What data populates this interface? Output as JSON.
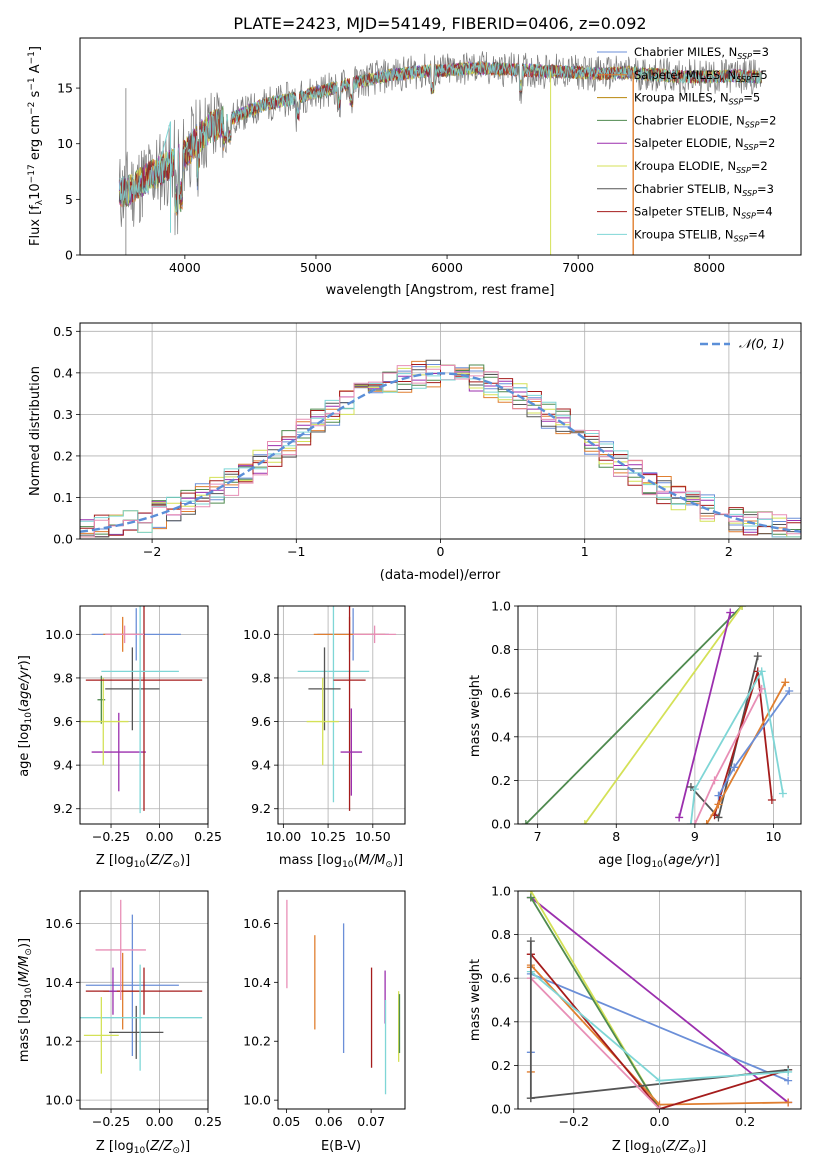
{
  "title": "PLATE=2423, MJD=54149, FIBERID=0406, z=0.092",
  "colors": {
    "Chabrier MILES": "#6b8fd8",
    "Salpeter MILES": "#e07f30",
    "Kroupa MILES": "#b8860b",
    "Chabrier ELODIE": "#4f8a4f",
    "Salpeter ELODIE": "#9b2fae",
    "Kroupa ELODIE": "#d4e157",
    "Chabrier STELIB": "#555555",
    "Salpeter STELIB": "#a51c1c",
    "Kroupa STELIB": "#7fd6d6",
    "pink": "#e88fb6",
    "gaussian": "#5b8fd8"
  },
  "chart_data": [
    {
      "type": "line",
      "panel": "spectrum",
      "xlabel": "wavelength [Angstrom, rest frame]",
      "ylabel": "Flux [f_λ10^{-17} erg cm^{-2} s^{-1} A^{-1}]",
      "xlim": [
        3200,
        8700
      ],
      "ylim": [
        0,
        19.5
      ],
      "xticks": [
        4000,
        5000,
        6000,
        7000,
        8000
      ],
      "yticks": [
        0,
        5,
        10,
        15
      ],
      "legend_position": "upper-right",
      "continuum": {
        "x": [
          3500,
          3600,
          3700,
          3800,
          3900,
          4000,
          4100,
          4200,
          4400,
          4600,
          4800,
          5000,
          5200,
          5400,
          5600,
          5800,
          6000,
          6200,
          6400,
          6600,
          6800,
          7000,
          7200,
          7400,
          7600,
          7800,
          8000,
          8200,
          8400
        ],
        "y": [
          5.5,
          6.0,
          6.8,
          7.5,
          8.2,
          9.0,
          10.5,
          11.5,
          12.5,
          13.5,
          14.0,
          14.6,
          15.2,
          15.8,
          16.2,
          16.5,
          16.6,
          16.8,
          16.7,
          16.6,
          16.5,
          16.4,
          16.3,
          16.4,
          16.2,
          16.0,
          16.0,
          16.1,
          16.0
        ]
      },
      "series": [
        {
          "name": "Chabrier MILES",
          "nssp": "3"
        },
        {
          "name": "Salpeter MILES",
          "nssp": "5"
        },
        {
          "name": "Kroupa MILES",
          "nssp": "5"
        },
        {
          "name": "Chabrier ELODIE",
          "nssp": "2"
        },
        {
          "name": "Salpeter ELODIE",
          "nssp": "2"
        },
        {
          "name": "Kroupa ELODIE",
          "nssp": "2"
        },
        {
          "name": "Chabrier STELIB",
          "nssp": "3"
        },
        {
          "name": "Salpeter STELIB",
          "nssp": "4"
        },
        {
          "name": "Kroupa STELIB",
          "nssp": "4"
        }
      ]
    },
    {
      "type": "histogram",
      "panel": "residuals",
      "xlabel": "(data-model)/error",
      "ylabel": "Normed distribution",
      "xlim": [
        -2.5,
        2.5
      ],
      "ylim": [
        0,
        0.52
      ],
      "xticks": [
        -2,
        -1,
        0,
        1,
        2
      ],
      "yticks": [
        0.0,
        0.1,
        0.2,
        0.3,
        0.4,
        0.5
      ],
      "grid": true,
      "legend": "𝒩(0, 1)",
      "legend_position": "upper-right",
      "gaussian": {
        "mean": 0,
        "sigma": 1
      }
    },
    {
      "type": "scatter",
      "panel": "age-vs-Z",
      "xlabel": "Z [log₁₀(Z/Z⊙)]",
      "ylabel": "age  [log₁₀(age/yr)]",
      "xlim": [
        -0.41,
        0.25
      ],
      "ylim": [
        9.13,
        10.13
      ],
      "xticks": [
        -0.25,
        0.0,
        0.25
      ],
      "yticks": [
        9.2,
        9.4,
        9.6,
        9.8,
        10.0
      ],
      "grid": true,
      "points": [
        {
          "color": "Chabrier MILES",
          "x": -0.12,
          "xerr": 0.23,
          "y": 10.0,
          "yerr": 0.12
        },
        {
          "color": "Salpeter MILES",
          "x": -0.19,
          "xerr": 0.1,
          "y": 10.0,
          "yerr": 0.08
        },
        {
          "color": "Chabrier ELODIE",
          "x": -0.3,
          "xerr": 0.02,
          "y": 9.7,
          "yerr": 0.11
        },
        {
          "color": "Salpeter ELODIE",
          "x": -0.21,
          "xerr": 0.14,
          "y": 9.46,
          "yerr": 0.18
        },
        {
          "color": "Kroupa ELODIE",
          "x": -0.29,
          "xerr": 0.13,
          "y": 9.6,
          "yerr": 0.2
        },
        {
          "color": "Chabrier STELIB",
          "x": -0.14,
          "xerr": 0.14,
          "y": 9.75,
          "yerr": 0.19
        },
        {
          "color": "Salpeter STELIB",
          "x": -0.08,
          "xerr": 0.3,
          "y": 9.79,
          "yerr": 0.6
        },
        {
          "color": "Kroupa STELIB",
          "x": -0.1,
          "xerr": 0.2,
          "y": 9.83,
          "yerr": 0.65
        },
        {
          "color": "pink",
          "x": -0.18,
          "xerr": 0.1,
          "y": 10.0,
          "yerr": 0.04
        }
      ]
    },
    {
      "type": "scatter",
      "panel": "age-vs-mass",
      "xlabel": "mass [log₁₀(M/M⊙)]",
      "xlim": [
        9.97,
        10.68
      ],
      "ylim": [
        9.13,
        10.13
      ],
      "xticks": [
        10.0,
        10.25,
        10.5
      ],
      "yticks": [
        9.2,
        9.4,
        9.6,
        9.8,
        10.0
      ],
      "grid": true,
      "points": [
        {
          "color": "Chabrier MILES",
          "x": 10.39,
          "xerr": 0.2,
          "y": 10.0,
          "yerr": 0.12
        },
        {
          "color": "Salpeter MILES",
          "x": 10.37,
          "xerr": 0.2,
          "y": 10.0,
          "yerr": 0.08
        },
        {
          "color": "Kroupa STELIB",
          "x": 10.28,
          "xerr": 0.2,
          "y": 9.83,
          "yerr": 0.6
        },
        {
          "color": "Chabrier STELIB",
          "x": 10.23,
          "xerr": 0.09,
          "y": 9.75,
          "yerr": 0.19
        },
        {
          "color": "Salpeter STELIB",
          "x": 10.37,
          "xerr": 0.09,
          "y": 9.79,
          "yerr": 0.6
        },
        {
          "color": "Kroupa ELODIE",
          "x": 10.22,
          "xerr": 0.09,
          "y": 9.6,
          "yerr": 0.2
        },
        {
          "color": "Salpeter ELODIE",
          "x": 10.38,
          "xerr": 0.06,
          "y": 9.46,
          "yerr": 0.2
        },
        {
          "color": "pink",
          "x": 10.51,
          "xerr": 0.12,
          "y": 10.0,
          "yerr": 0.04
        }
      ]
    },
    {
      "type": "line",
      "panel": "mass-weight-vs-age",
      "xlabel": "age  [log₁₀(age/yr)]",
      "ylabel": "mass weight",
      "xlim": [
        6.75,
        10.35
      ],
      "ylim": [
        0,
        1.0
      ],
      "xticks": [
        7,
        8,
        9,
        10
      ],
      "yticks": [
        0.0,
        0.2,
        0.4,
        0.6,
        0.8,
        1.0
      ],
      "grid": true,
      "series": [
        {
          "color": "Chabrier ELODIE",
          "x": [
            6.85,
            9.6
          ],
          "y": [
            0.0,
            1.0
          ]
        },
        {
          "color": "Kroupa ELODIE",
          "x": [
            7.6,
            9.6
          ],
          "y": [
            0.0,
            1.0
          ]
        },
        {
          "color": "Salpeter ELODIE",
          "x": [
            8.8,
            9.45
          ],
          "y": [
            0.03,
            0.97
          ]
        },
        {
          "color": "Chabrier STELIB",
          "x": [
            8.95,
            9.3,
            9.8
          ],
          "y": [
            0.17,
            0.03,
            0.77
          ]
        },
        {
          "color": "Salpeter STELIB",
          "x": [
            9.25,
            9.8,
            9.98
          ],
          "y": [
            0.04,
            0.7,
            0.11
          ]
        },
        {
          "color": "Salpeter MILES",
          "x": [
            9.15,
            9.3,
            10.15
          ],
          "y": [
            0.0,
            0.09,
            0.65
          ]
        },
        {
          "color": "Chabrier MILES",
          "x": [
            9.3,
            9.5,
            10.2
          ],
          "y": [
            0.13,
            0.26,
            0.61
          ]
        },
        {
          "color": "Kroupa STELIB",
          "x": [
            8.95,
            9.0,
            9.85,
            10.12
          ],
          "y": [
            0.0,
            0.16,
            0.7,
            0.14
          ]
        },
        {
          "color": "pink",
          "x": [
            9.0,
            9.25,
            9.85
          ],
          "y": [
            0.0,
            0.2,
            0.62
          ]
        }
      ]
    },
    {
      "type": "scatter",
      "panel": "mass-vs-Z",
      "xlabel": "Z [log₁₀(Z/Z⊙)]",
      "ylabel": "mass [log₁₀(M/M⊙)]",
      "xlim": [
        -0.41,
        0.25
      ],
      "ylim": [
        9.97,
        10.71
      ],
      "xticks": [
        -0.25,
        0.0,
        0.25
      ],
      "yticks": [
        10.0,
        10.2,
        10.4,
        10.6
      ],
      "grid": true,
      "points": [
        {
          "color": "Chabrier MILES",
          "x": -0.14,
          "xerr": 0.24,
          "y": 10.39,
          "yerr": 0.24
        },
        {
          "color": "Salpeter MILES",
          "x": -0.19,
          "xerr": 0.1,
          "y": 10.37,
          "yerr": 0.13
        },
        {
          "color": "Salpeter STELIB",
          "x": -0.08,
          "xerr": 0.3,
          "y": 10.37,
          "yerr": 0.08
        },
        {
          "color": "Chabrier STELIB",
          "x": -0.12,
          "xerr": 0.14,
          "y": 10.23,
          "yerr": 0.09
        },
        {
          "color": "Kroupa STELIB",
          "x": -0.1,
          "xerr": 0.32,
          "y": 10.28,
          "yerr": 0.18
        },
        {
          "color": "Kroupa ELODIE",
          "x": -0.3,
          "xerr": 0.09,
          "y": 10.22,
          "yerr": 0.13
        },
        {
          "color": "Salpeter ELODIE",
          "x": -0.24,
          "xerr": 0.02,
          "y": 10.37,
          "yerr": 0.08
        },
        {
          "color": "pink",
          "x": -0.2,
          "xerr": 0.13,
          "y": 10.51,
          "yerr": 0.17
        }
      ]
    },
    {
      "type": "scatter",
      "panel": "mass-vs-EBV",
      "xlabel": "E(B-V)",
      "xlim": [
        0.048,
        0.078
      ],
      "ylim": [
        9.97,
        10.71
      ],
      "xticks": [
        0.05,
        0.06,
        0.07
      ],
      "yticks": [
        10.0,
        10.2,
        10.4,
        10.6
      ],
      "points": [
        {
          "color": "pink",
          "x": 0.0501,
          "y": 10.53,
          "yerr": 0.15
        },
        {
          "color": "Salpeter MILES",
          "x": 0.0567,
          "y": 10.4,
          "yerr": 0.16
        },
        {
          "color": "Chabrier MILES",
          "x": 0.0635,
          "y": 10.38,
          "yerr": 0.22
        },
        {
          "color": "Salpeter STELIB",
          "x": 0.0701,
          "y": 10.28,
          "yerr": 0.17
        },
        {
          "color": "Salpeter ELODIE",
          "x": 0.0733,
          "y": 10.35,
          "yerr": 0.09
        },
        {
          "color": "Kroupa STELIB",
          "x": 0.0734,
          "y": 10.18,
          "yerr": 0.16
        },
        {
          "color": "Kroupa ELODIE",
          "x": 0.0765,
          "y": 10.25,
          "yerr": 0.12
        },
        {
          "color": "Chabrier ELODIE",
          "x": 0.0767,
          "y": 10.26,
          "yerr": 0.1
        }
      ]
    },
    {
      "type": "line",
      "panel": "mass-weight-vs-Z",
      "xlabel": "Z [log₁₀(Z/Z⊙)]",
      "ylabel": "mass weight",
      "xlim": [
        -0.33,
        0.33
      ],
      "ylim": [
        0,
        1.0
      ],
      "xticks": [
        -0.2,
        0.0,
        0.2
      ],
      "yticks": [
        0.0,
        0.2,
        0.4,
        0.6,
        0.8,
        1.0
      ],
      "grid": true,
      "series": [
        {
          "color": "Salpeter ELODIE",
          "x": [
            -0.3,
            0.3
          ],
          "y": [
            0.97,
            0.03
          ]
        },
        {
          "color": "Chabrier MILES",
          "x": [
            -0.3,
            0.3
          ],
          "y": [
            0.62,
            0.13
          ]
        },
        {
          "color": "Kroupa ELODIE",
          "x": [
            -0.3,
            0.0
          ],
          "y": [
            1.0,
            0.0
          ]
        },
        {
          "color": "Chabrier ELODIE",
          "x": [
            -0.3,
            0.0
          ],
          "y": [
            0.97,
            0.0
          ]
        },
        {
          "color": "Salpeter MILES",
          "x": [
            -0.3,
            0.0,
            0.3
          ],
          "y": [
            0.66,
            0.02,
            0.03
          ]
        },
        {
          "color": "Salpeter STELIB",
          "x": [
            -0.3,
            0.0,
            0.3
          ],
          "y": [
            0.71,
            0.0,
            0.18
          ]
        },
        {
          "color": "Chabrier STELIB",
          "x": [
            -0.3,
            0.3
          ],
          "y": [
            0.05,
            0.18
          ]
        },
        {
          "color": "Kroupa STELIB",
          "x": [
            -0.3,
            0.0,
            0.3
          ],
          "y": [
            0.63,
            0.13,
            0.17
          ]
        },
        {
          "color": "pink",
          "x": [
            -0.3,
            0.0
          ],
          "y": [
            0.6,
            0.0
          ]
        }
      ],
      "markers_at_min": [
        0.77,
        0.71,
        0.65,
        0.26,
        0.17,
        0.05
      ]
    }
  ]
}
